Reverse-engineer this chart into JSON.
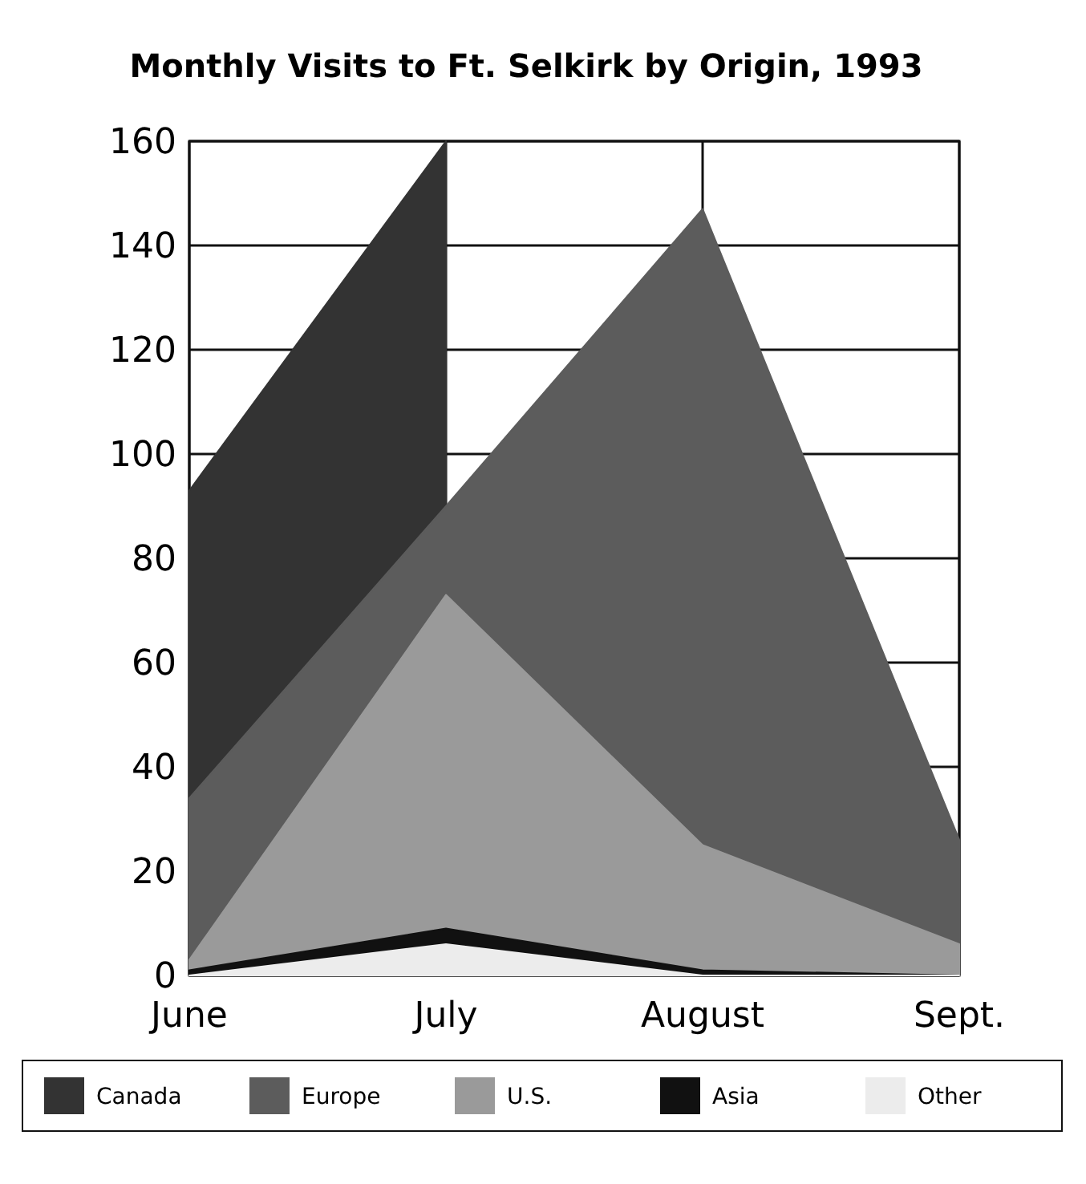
{
  "chart_data": {
    "type": "area",
    "title": "Monthly Visits to Ft. Selkirk by Origin, 1993",
    "categories": [
      "June",
      "July",
      "August",
      "Sept."
    ],
    "series": [
      {
        "name": "Canada",
        "color": "#333333",
        "values": [
          93,
          160,
          null,
          null
        ]
      },
      {
        "name": "Europe",
        "color": "#5c5c5c",
        "values": [
          34,
          90,
          147,
          26
        ]
      },
      {
        "name": "U.S.",
        "color": "#9a9a9a",
        "values": [
          3,
          73,
          25,
          6
        ]
      },
      {
        "name": "Asia",
        "color": "#111111",
        "values": [
          1,
          9,
          1,
          0
        ]
      },
      {
        "name": "Other",
        "color": "#ececec",
        "values": [
          0,
          6,
          0,
          0
        ]
      }
    ],
    "ylim": [
      0,
      160
    ],
    "yticks": [
      0,
      20,
      40,
      60,
      80,
      100,
      120,
      140,
      160
    ],
    "grid": true,
    "legend": "bottom"
  }
}
